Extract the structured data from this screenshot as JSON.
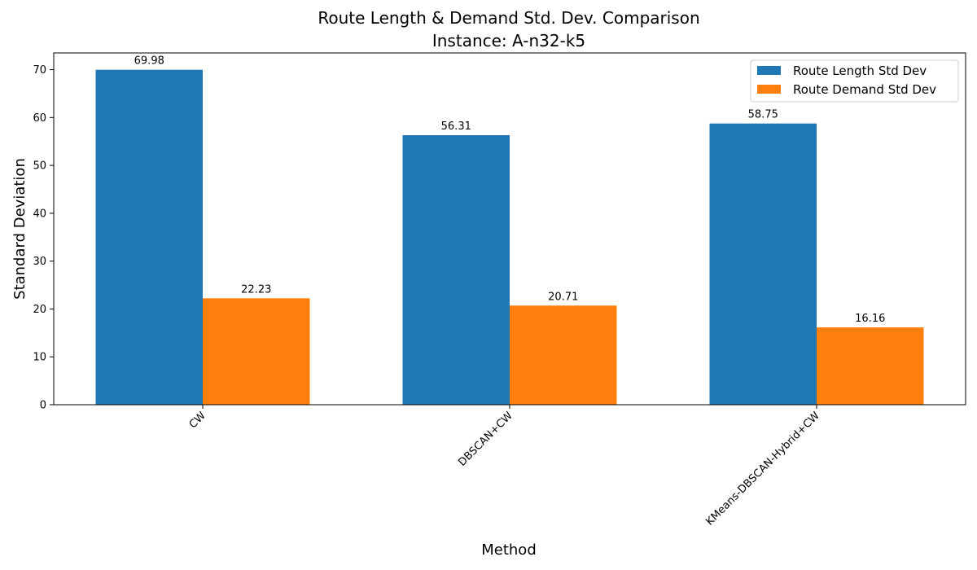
{
  "chart_data": {
    "type": "bar",
    "title": "Route Length & Demand Std. Dev. Comparison",
    "subtitle": "Instance: A-n32-k5",
    "xlabel": "Method",
    "ylabel": "Standard Deviation",
    "categories": [
      "CW",
      "DBSCAN+CW",
      "KMeans-DBSCAN-Hybrid+CW"
    ],
    "series": [
      {
        "name": "Route Length Std Dev",
        "values": [
          69.98,
          56.31,
          58.75
        ],
        "color": "#1f77b4"
      },
      {
        "name": "Route Demand Std Dev",
        "values": [
          22.23,
          20.71,
          16.16
        ],
        "color": "#ff7f0e"
      }
    ],
    "data_labels": [
      [
        "69.98",
        "56.31",
        "58.75"
      ],
      [
        "22.23",
        "20.71",
        "16.16"
      ]
    ],
    "ylim": [
      0,
      73.5
    ],
    "yticks": [
      0,
      10,
      20,
      30,
      40,
      50,
      60,
      70
    ],
    "grid": false,
    "legend_position": "top-right"
  }
}
